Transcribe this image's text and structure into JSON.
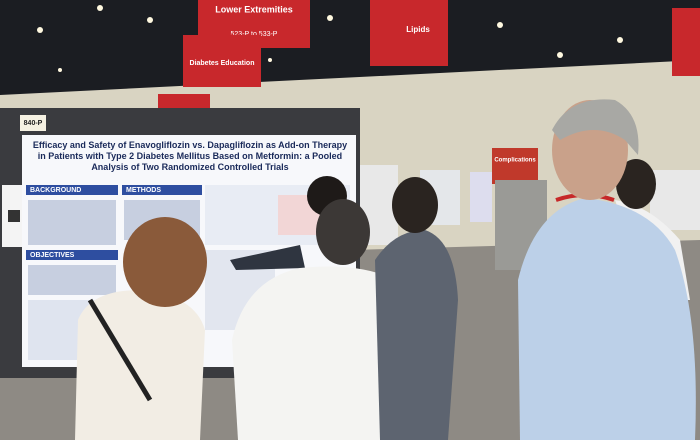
{
  "signs": [
    {
      "title": "Lower Extremities",
      "range": "523-P to 533-P"
    },
    {
      "title": "Diabetes Education"
    },
    {
      "title": "Lipids"
    },
    {
      "title": "Complications"
    }
  ],
  "poster": {
    "board_number": "840-P",
    "title": "Efficacy and Safety of Enavogliflozin vs. Dapagliflozin as Add-on Therapy in Patients with Type 2 Diabetes Mellitus Based on Metformin: a Pooled Analysis of Two Randomized Controlled Trials",
    "sections": [
      "BACKGROUND",
      "METHODS",
      "OBJECTIVES"
    ]
  }
}
